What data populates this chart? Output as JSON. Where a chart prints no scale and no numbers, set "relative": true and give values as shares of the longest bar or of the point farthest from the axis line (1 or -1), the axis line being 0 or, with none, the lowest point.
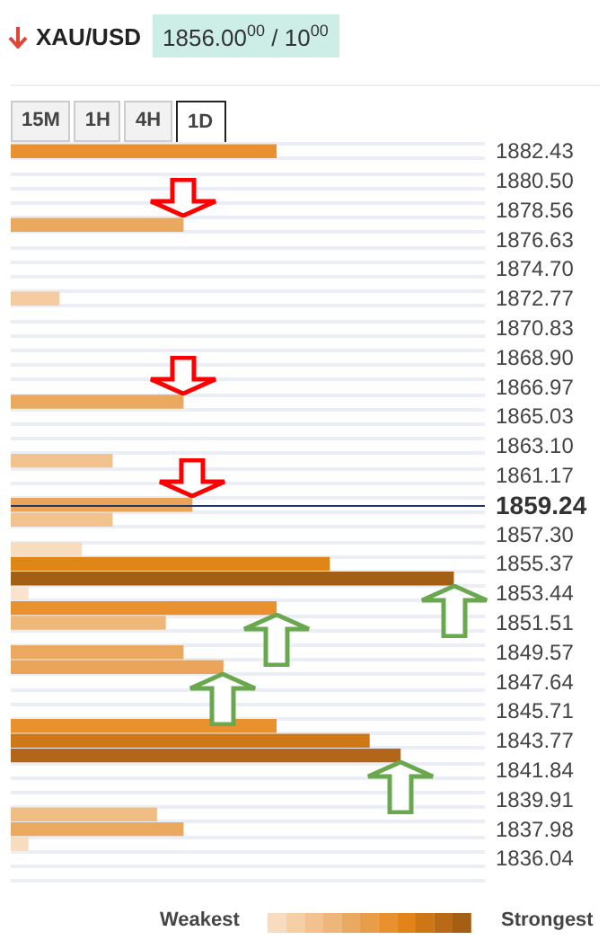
{
  "chart_data": {
    "type": "bar",
    "orientation": "horizontal",
    "relative": true,
    "title": "XAU/USD",
    "subtitle": "1856.00$^{00}$ / 10$^{00}$",
    "categories": [
      "1882.43",
      null,
      "1880.50",
      null,
      "1878.56",
      null,
      "1876.63",
      null,
      "1874.70",
      null,
      "1872.77",
      null,
      "1870.83",
      null,
      "1868.90",
      null,
      "1866.97",
      null,
      "1865.03",
      null,
      "1863.10",
      null,
      "1861.17",
      null,
      "1859.24",
      null,
      "1857.30",
      null,
      "1855.37",
      null,
      "1853.44",
      null,
      "1851.51",
      null,
      "1849.57",
      null,
      "1847.64",
      null,
      "1845.71",
      null,
      "1843.77",
      null,
      "1841.84",
      null,
      "1839.91",
      null,
      "1837.98",
      null,
      "1836.04",
      null
    ],
    "values": [
      0.6,
      null,
      null,
      null,
      null,
      0.39,
      null,
      null,
      null,
      null,
      0.11,
      null,
      null,
      null,
      null,
      null,
      null,
      0.39,
      null,
      null,
      null,
      0.23,
      null,
      null,
      0.41,
      0.23,
      null,
      0.16,
      0.72,
      1,
      0.04,
      0.6,
      0.35,
      null,
      0.39,
      0.48,
      null,
      null,
      null,
      0.6,
      0.81,
      0.88,
      null,
      null,
      null,
      0.33,
      0.39,
      0.04,
      null,
      null
    ],
    "colors": [
      "#e8912e",
      null,
      null,
      null,
      null,
      "#eaa95e",
      null,
      null,
      null,
      null,
      "#f5cba0",
      null,
      null,
      null,
      null,
      null,
      null,
      "#eaa95e",
      null,
      null,
      null,
      "#f3c38f",
      null,
      null,
      "#eaa55a",
      "#f3c38f",
      null,
      "#f7dcc0",
      "#e08616",
      "#a35f14",
      "#f9e3cc",
      "#e8912e",
      "#efb77a",
      null,
      "#eaa95e",
      "#eaa55a",
      null,
      null,
      null,
      "#e8912e",
      "#cf7818",
      "#b3661a",
      null,
      null,
      null,
      "#f0bd84",
      "#eaa95e",
      "#f7dcc0",
      null,
      null
    ],
    "ref_lines": [
      {
        "axis": "y",
        "value": "1859.24",
        "color": "#1f3864"
      }
    ],
    "grid": "y",
    "annotations": [
      "15M",
      "1H",
      "4H",
      "1D",
      "Weakest",
      "Strongest"
    ]
  }
}
